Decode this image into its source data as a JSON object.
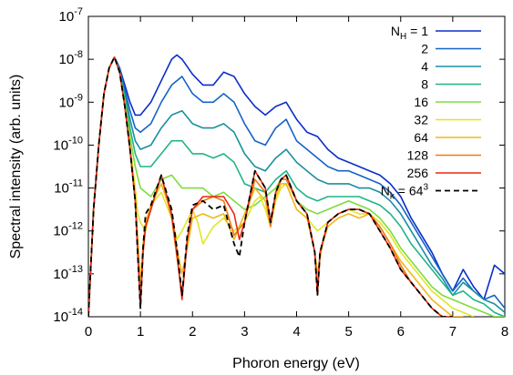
{
  "chart_data": {
    "type": "line",
    "xlabel": "Phoron energy (eV)",
    "ylabel": "Spectral intensity (arb. units)",
    "xlim": [
      0,
      8
    ],
    "ylim_log10": [
      -14,
      -7
    ],
    "y_scale": "log",
    "x_ticks": [
      "0",
      "1",
      "2",
      "3",
      "4",
      "5",
      "6",
      "7",
      "8"
    ],
    "y_ticks": [
      {
        "exp": -14,
        "label": "10-14"
      },
      {
        "exp": -13,
        "label": "10-13"
      },
      {
        "exp": -12,
        "label": "10-12"
      },
      {
        "exp": -11,
        "label": "10-11"
      },
      {
        "exp": -10,
        "label": "10-10"
      },
      {
        "exp": -9,
        "label": "10-9"
      },
      {
        "exp": -8,
        "label": "10-8"
      },
      {
        "exp": -7,
        "label": "10-7"
      }
    ],
    "legend": {
      "placement": "top-right",
      "header": "N_H = ",
      "entries": [
        "1",
        "2",
        "4",
        "8",
        "16",
        "32",
        "64",
        "128",
        "256"
      ],
      "extra": "N_k = 64^3"
    },
    "series": [
      {
        "name": "1",
        "color": "#0a2ec8",
        "dashed": false,
        "x": [
          0.0,
          0.1,
          0.2,
          0.3,
          0.4,
          0.5,
          0.6,
          0.7,
          0.8,
          0.9,
          1.0,
          1.2,
          1.4,
          1.6,
          1.7,
          1.8,
          2.0,
          2.2,
          2.4,
          2.6,
          2.8,
          3.0,
          3.2,
          3.4,
          3.6,
          3.8,
          4.0,
          4.2,
          4.4,
          4.6,
          4.8,
          5.0,
          5.2,
          5.4,
          5.6,
          5.8,
          6.0,
          6.2,
          6.4,
          6.6,
          6.8,
          7.0,
          7.2,
          7.4,
          7.6,
          7.8,
          8.0
        ],
        "logy": [
          -14,
          -11.5,
          -10.0,
          -8.8,
          -8.2,
          -7.95,
          -8.2,
          -8.6,
          -9.0,
          -9.3,
          -9.3,
          -9.0,
          -8.5,
          -8.0,
          -7.9,
          -8.0,
          -8.35,
          -8.6,
          -8.6,
          -8.3,
          -8.4,
          -8.8,
          -9.1,
          -9.3,
          -9.1,
          -9.0,
          -9.4,
          -9.7,
          -9.8,
          -10.1,
          -10.3,
          -10.4,
          -10.5,
          -10.6,
          -10.7,
          -10.9,
          -11.2,
          -11.7,
          -12.1,
          -12.5,
          -13.0,
          -13.4,
          -12.9,
          -13.3,
          -13.6,
          -12.8,
          -13.0
        ]
      },
      {
        "name": "2",
        "color": "#1563c8",
        "dashed": false,
        "x": [
          0.0,
          0.1,
          0.2,
          0.3,
          0.4,
          0.5,
          0.6,
          0.7,
          0.8,
          0.9,
          1.0,
          1.2,
          1.4,
          1.6,
          1.8,
          2.0,
          2.2,
          2.4,
          2.6,
          2.8,
          3.0,
          3.2,
          3.4,
          3.6,
          3.8,
          4.0,
          4.2,
          4.4,
          4.6,
          4.8,
          5.0,
          5.2,
          5.4,
          5.6,
          5.8,
          6.0,
          6.2,
          6.4,
          6.6,
          6.8,
          7.0,
          7.2,
          7.4,
          7.6,
          7.8,
          8.0
        ],
        "logy": [
          -14,
          -11.5,
          -10.0,
          -8.8,
          -8.2,
          -7.95,
          -8.2,
          -8.7,
          -9.2,
          -9.6,
          -9.7,
          -9.5,
          -9.0,
          -8.6,
          -8.4,
          -8.8,
          -9.0,
          -9.0,
          -8.8,
          -9.0,
          -9.5,
          -9.9,
          -10.0,
          -9.6,
          -9.4,
          -9.9,
          -10.1,
          -10.3,
          -10.5,
          -10.6,
          -10.6,
          -10.7,
          -10.8,
          -10.9,
          -11.1,
          -11.4,
          -11.8,
          -12.2,
          -12.6,
          -13.0,
          -13.4,
          -13.1,
          -13.4,
          -13.6,
          -13.5,
          -13.8
        ]
      },
      {
        "name": "4",
        "color": "#1a8fa0",
        "dashed": false,
        "x": [
          0.0,
          0.1,
          0.2,
          0.3,
          0.4,
          0.5,
          0.6,
          0.7,
          0.8,
          0.9,
          1.0,
          1.2,
          1.4,
          1.6,
          1.8,
          2.0,
          2.2,
          2.4,
          2.6,
          2.8,
          3.0,
          3.2,
          3.4,
          3.6,
          3.8,
          4.0,
          4.2,
          4.4,
          4.6,
          4.8,
          5.0,
          5.2,
          5.4,
          5.6,
          5.8,
          6.0,
          6.2,
          6.4,
          6.6,
          6.8,
          7.0,
          7.2,
          7.4,
          7.6,
          7.8,
          8.0
        ],
        "logy": [
          -14,
          -11.5,
          -10.0,
          -8.8,
          -8.2,
          -7.95,
          -8.3,
          -8.8,
          -9.4,
          -9.9,
          -10.1,
          -10.0,
          -9.6,
          -9.3,
          -9.2,
          -9.5,
          -9.6,
          -9.6,
          -9.5,
          -9.7,
          -10.2,
          -10.5,
          -10.6,
          -10.3,
          -10.1,
          -10.4,
          -10.6,
          -10.8,
          -10.9,
          -10.9,
          -10.9,
          -11.0,
          -11.0,
          -11.1,
          -11.3,
          -11.6,
          -12.0,
          -12.4,
          -12.8,
          -13.1,
          -13.5,
          -13.2,
          -13.4,
          -13.6,
          -13.7,
          -13.9
        ]
      },
      {
        "name": "8",
        "color": "#20b48a",
        "dashed": false,
        "x": [
          0.0,
          0.1,
          0.2,
          0.3,
          0.4,
          0.5,
          0.6,
          0.7,
          0.8,
          0.9,
          1.0,
          1.2,
          1.4,
          1.6,
          1.8,
          2.0,
          2.2,
          2.4,
          2.6,
          2.8,
          3.0,
          3.2,
          3.4,
          3.6,
          3.8,
          4.0,
          4.2,
          4.4,
          4.6,
          4.8,
          5.0,
          5.2,
          5.4,
          5.6,
          5.8,
          6.0,
          6.2,
          6.4,
          6.6,
          6.8,
          7.0,
          7.2,
          7.4,
          7.6,
          7.8,
          8.0
        ],
        "logy": [
          -14,
          -11.5,
          -10.0,
          -8.8,
          -8.2,
          -7.95,
          -8.3,
          -8.9,
          -9.6,
          -10.2,
          -10.5,
          -10.5,
          -10.2,
          -9.9,
          -9.9,
          -10.2,
          -10.2,
          -10.3,
          -10.2,
          -10.4,
          -10.9,
          -11.0,
          -11.1,
          -10.8,
          -10.6,
          -11.0,
          -11.2,
          -11.3,
          -11.2,
          -11.2,
          -11.2,
          -11.2,
          -11.3,
          -11.4,
          -11.6,
          -11.9,
          -12.3,
          -12.6,
          -12.9,
          -13.2,
          -13.5,
          -13.4,
          -13.6,
          -13.7,
          -13.9,
          -14.0
        ]
      },
      {
        "name": "16",
        "color": "#7edc3c",
        "dashed": false,
        "x": [
          0.0,
          0.1,
          0.2,
          0.3,
          0.4,
          0.5,
          0.6,
          0.7,
          0.8,
          0.9,
          1.0,
          1.2,
          1.4,
          1.6,
          1.8,
          2.0,
          2.2,
          2.4,
          2.6,
          2.8,
          3.0,
          3.2,
          3.4,
          3.6,
          3.7,
          3.8,
          4.0,
          4.2,
          4.4,
          4.6,
          4.8,
          5.0,
          5.2,
          5.4,
          5.6,
          5.8,
          6.0,
          6.2,
          6.4,
          6.6,
          6.8,
          7.0,
          7.2,
          7.4,
          7.6,
          7.8,
          8.0
        ],
        "logy": [
          -14,
          -11.5,
          -10.0,
          -8.8,
          -8.2,
          -7.95,
          -8.3,
          -9.0,
          -9.8,
          -10.5,
          -11.0,
          -11.2,
          -10.8,
          -10.7,
          -11.0,
          -11.0,
          -11.0,
          -11.2,
          -11.1,
          -11.3,
          -11.5,
          -11.4,
          -11.2,
          -11.0,
          -10.8,
          -10.7,
          -11.3,
          -11.5,
          -11.6,
          -11.5,
          -11.4,
          -11.3,
          -11.4,
          -11.5,
          -11.7,
          -12.0,
          -12.4,
          -12.7,
          -13.0,
          -13.3,
          -13.5,
          -13.6,
          -13.7,
          -13.8,
          -13.9,
          -14.0,
          -14.0
        ]
      },
      {
        "name": "32",
        "color": "#e0e628",
        "dashed": false,
        "x": [
          0.0,
          0.1,
          0.2,
          0.3,
          0.4,
          0.5,
          0.6,
          0.7,
          0.8,
          0.9,
          0.95,
          1.0,
          1.1,
          1.2,
          1.4,
          1.6,
          1.7,
          1.8,
          2.0,
          2.1,
          2.2,
          2.4,
          2.6,
          2.8,
          3.0,
          3.2,
          3.3,
          3.4,
          3.5,
          3.6,
          3.7,
          3.8,
          4.0,
          4.2,
          4.4,
          4.6,
          4.8,
          5.0,
          5.2,
          5.4,
          5.6,
          5.8,
          6.0,
          6.2,
          6.4,
          6.6,
          6.8,
          7.0,
          7.2,
          7.4
        ],
        "logy": [
          -14,
          -11.5,
          -10.0,
          -8.8,
          -8.2,
          -7.95,
          -8.3,
          -9.1,
          -10.0,
          -11.0,
          -11.6,
          -11.8,
          -12.0,
          -11.4,
          -11.1,
          -11.7,
          -12.2,
          -12.0,
          -11.5,
          -11.8,
          -12.3,
          -11.9,
          -11.7,
          -12.0,
          -11.8,
          -11.3,
          -11.2,
          -11.5,
          -11.9,
          -11.3,
          -11.0,
          -10.9,
          -11.5,
          -11.7,
          -12.0,
          -11.8,
          -11.6,
          -11.5,
          -11.6,
          -11.6,
          -11.8,
          -12.1,
          -12.5,
          -12.8,
          -13.1,
          -13.4,
          -13.6,
          -13.8,
          -13.9,
          -14.0
        ]
      },
      {
        "name": "64",
        "color": "#f0b81c",
        "dashed": false,
        "x": [
          0.0,
          0.1,
          0.2,
          0.3,
          0.4,
          0.5,
          0.6,
          0.7,
          0.8,
          0.9,
          0.95,
          1.0,
          1.05,
          1.1,
          1.2,
          1.4,
          1.6,
          1.7,
          1.8,
          1.9,
          2.0,
          2.2,
          2.4,
          2.6,
          2.8,
          3.0,
          3.2,
          3.4,
          3.5,
          3.6,
          3.7,
          3.8,
          4.0,
          4.2,
          4.35,
          4.4,
          4.5,
          4.6,
          4.8,
          5.0,
          5.2,
          5.4,
          5.6,
          5.8,
          6.0,
          6.2,
          6.4,
          6.6,
          6.8,
          7.0,
          7.2
        ],
        "logy": [
          -14,
          -11.5,
          -10.0,
          -8.8,
          -8.2,
          -7.95,
          -8.3,
          -9.1,
          -10.1,
          -11.2,
          -12.2,
          -13.2,
          -12.3,
          -11.8,
          -11.4,
          -10.9,
          -11.6,
          -12.4,
          -13.0,
          -12.4,
          -11.7,
          -11.6,
          -11.7,
          -11.6,
          -12.2,
          -11.6,
          -11.0,
          -11.3,
          -11.9,
          -11.2,
          -10.9,
          -10.9,
          -11.5,
          -11.7,
          -12.5,
          -13.0,
          -12.3,
          -11.9,
          -11.7,
          -11.6,
          -11.7,
          -11.6,
          -11.9,
          -12.3,
          -12.7,
          -13.0,
          -13.3,
          -13.6,
          -13.8,
          -14.0,
          -14.0
        ]
      },
      {
        "name": "128",
        "color": "#f07a14",
        "dashed": false,
        "x": [
          0.0,
          0.1,
          0.2,
          0.3,
          0.4,
          0.5,
          0.6,
          0.7,
          0.8,
          0.9,
          0.95,
          1.0,
          1.05,
          1.1,
          1.2,
          1.4,
          1.6,
          1.7,
          1.8,
          1.85,
          1.9,
          2.0,
          2.2,
          2.4,
          2.6,
          2.8,
          3.0,
          3.2,
          3.4,
          3.5,
          3.6,
          3.7,
          3.8,
          4.0,
          4.2,
          4.35,
          4.4,
          4.45,
          4.6,
          4.8,
          5.0,
          5.2,
          5.4,
          5.6,
          5.8,
          6.0,
          6.2,
          6.4,
          6.6,
          6.8,
          7.0
        ],
        "logy": [
          -14,
          -11.5,
          -10.0,
          -8.8,
          -8.2,
          -7.95,
          -8.3,
          -9.1,
          -10.1,
          -11.3,
          -12.5,
          -13.6,
          -12.5,
          -11.9,
          -11.5,
          -10.7,
          -11.7,
          -12.6,
          -13.5,
          -12.8,
          -12.2,
          -11.5,
          -11.3,
          -11.2,
          -11.3,
          -12.1,
          -11.8,
          -10.8,
          -11.1,
          -11.9,
          -11.1,
          -10.8,
          -10.8,
          -11.3,
          -11.6,
          -12.5,
          -13.4,
          -12.5,
          -11.8,
          -11.6,
          -11.5,
          -11.5,
          -11.6,
          -11.9,
          -12.3,
          -12.8,
          -13.2,
          -13.5,
          -13.8,
          -14.0,
          -14.0
        ]
      },
      {
        "name": "256",
        "color": "#e82814",
        "dashed": false,
        "x": [
          0.0,
          0.1,
          0.2,
          0.3,
          0.4,
          0.5,
          0.6,
          0.7,
          0.8,
          0.9,
          0.95,
          1.0,
          1.05,
          1.1,
          1.2,
          1.4,
          1.6,
          1.7,
          1.8,
          1.85,
          1.9,
          2.0,
          2.2,
          2.4,
          2.6,
          2.8,
          2.9,
          3.0,
          3.2,
          3.4,
          3.5,
          3.6,
          3.7,
          3.8,
          4.0,
          4.2,
          4.35,
          4.4,
          4.45,
          4.6,
          4.8,
          5.0,
          5.2,
          5.4,
          5.6,
          5.8,
          6.0,
          6.2,
          6.4,
          6.6,
          6.8,
          7.0
        ],
        "logy": [
          -14,
          -11.5,
          -10.0,
          -8.8,
          -8.2,
          -7.95,
          -8.3,
          -9.1,
          -10.1,
          -11.3,
          -12.6,
          -13.8,
          -12.5,
          -11.9,
          -11.5,
          -10.7,
          -11.6,
          -12.5,
          -13.6,
          -12.9,
          -12.2,
          -11.5,
          -11.2,
          -11.2,
          -11.2,
          -11.6,
          -12.2,
          -11.8,
          -10.6,
          -11.0,
          -11.8,
          -11.1,
          -10.8,
          -10.7,
          -11.3,
          -11.6,
          -12.5,
          -13.5,
          -12.5,
          -11.8,
          -11.6,
          -11.5,
          -11.5,
          -11.6,
          -12.0,
          -12.4,
          -12.9,
          -13.2,
          -13.5,
          -13.8,
          -14.0,
          -14.0
        ]
      },
      {
        "name": "N_k = 64^3",
        "color": "#000000",
        "dashed": true,
        "x": [
          0.0,
          0.1,
          0.2,
          0.3,
          0.4,
          0.5,
          0.6,
          0.7,
          0.8,
          0.9,
          0.95,
          1.0,
          1.05,
          1.1,
          1.2,
          1.4,
          1.6,
          1.7,
          1.8,
          1.85,
          1.9,
          2.0,
          2.2,
          2.4,
          2.6,
          2.8,
          2.9,
          3.0,
          3.2,
          3.4,
          3.5,
          3.6,
          3.7,
          3.8,
          4.0,
          4.2,
          4.35,
          4.4,
          4.45,
          4.6,
          4.8,
          5.0,
          5.2,
          5.4,
          5.6,
          5.8,
          6.0,
          6.2,
          6.4,
          6.6,
          6.8,
          7.0
        ],
        "logy": [
          -14,
          -11.5,
          -10.0,
          -8.8,
          -8.2,
          -7.95,
          -8.3,
          -9.1,
          -10.1,
          -11.3,
          -12.6,
          -13.8,
          -12.4,
          -11.6,
          -11.4,
          -10.7,
          -11.5,
          -12.4,
          -13.5,
          -12.8,
          -12.1,
          -11.4,
          -11.3,
          -11.5,
          -11.4,
          -12.3,
          -12.6,
          -11.8,
          -10.6,
          -11.0,
          -11.8,
          -11.1,
          -10.8,
          -10.7,
          -11.3,
          -11.6,
          -12.5,
          -13.5,
          -12.5,
          -11.8,
          -11.6,
          -11.5,
          -11.5,
          -11.6,
          -12.0,
          -12.4,
          -12.9,
          -13.2,
          -13.5,
          -13.8,
          -14.0,
          -14.0
        ]
      }
    ]
  }
}
